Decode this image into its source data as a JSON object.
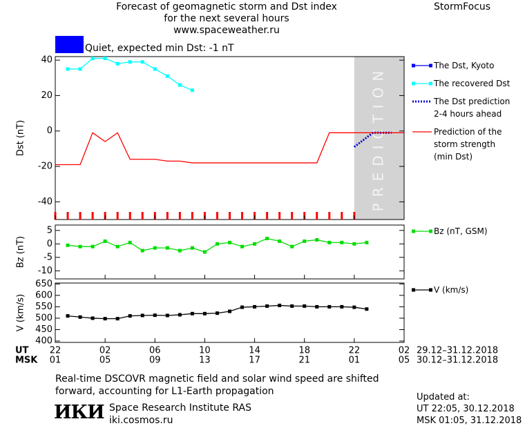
{
  "header": {
    "title": "Forecast of geomagnetic storm and Dst index\nfor the next several hours\nwww.spaceweather.ru",
    "brand": "StormFocus",
    "status": "Quiet, expected min Dst: -1 nT",
    "status_color": "#0000ff"
  },
  "chart_data": [
    {
      "type": "line",
      "ylabel": "Dst (nT)",
      "xlim": [
        0,
        28
      ],
      "ylim": [
        -50,
        42
      ],
      "yticks": [
        40,
        20,
        0,
        -20,
        -40
      ],
      "prediction_region": {
        "xlim": [
          24,
          28
        ],
        "label": "PREDICTION"
      },
      "xminor": [
        0,
        1,
        2,
        3,
        4,
        5,
        6,
        7,
        8,
        9,
        10,
        11,
        12,
        13,
        14,
        15,
        16,
        17,
        18,
        19,
        20,
        21,
        22,
        23,
        24
      ],
      "xminor_color": "#ff0000",
      "series": [
        {
          "name": "The Dst, Kyoto",
          "color": "#0000ff",
          "marker": true,
          "linestyle": "solid",
          "x": [],
          "values": []
        },
        {
          "name": "The recovered Dst",
          "color": "#00ffff",
          "marker": true,
          "linestyle": "solid",
          "x": [
            1,
            2,
            3,
            4,
            5,
            6,
            7,
            8,
            9,
            10,
            11
          ],
          "values": [
            35,
            35,
            41,
            41,
            38,
            39,
            39,
            35,
            31,
            26,
            23
          ]
        },
        {
          "name": "The Dst prediction\n2-4 hours ahead",
          "color": "#0000cc",
          "marker": false,
          "linestyle": "dotted",
          "x": [
            24,
            25.5,
            27
          ],
          "values": [
            -9,
            -1,
            -1
          ]
        },
        {
          "name": "Prediction of the\nstorm strength\n(min Dst)",
          "color": "#ff0000",
          "marker": false,
          "linestyle": "solid",
          "x": [
            0,
            2,
            3,
            4,
            5,
            6,
            8,
            9,
            10,
            11,
            21,
            22,
            28
          ],
          "values": [
            -19,
            -19,
            -1,
            -6,
            -1,
            -16,
            -16,
            -17,
            -17,
            -18,
            -18,
            -1,
            -1
          ]
        }
      ]
    },
    {
      "type": "line",
      "ylabel": "Bz (nT)",
      "xlim": [
        0,
        28
      ],
      "ylim": [
        -13,
        7
      ],
      "yticks": [
        5,
        0,
        -5,
        -10
      ],
      "series": [
        {
          "name": "Bz (nT, GSM)",
          "color": "#00dd00",
          "marker": true,
          "linestyle": "solid",
          "x": [
            1,
            2,
            3,
            4,
            5,
            6,
            7,
            8,
            9,
            10,
            11,
            12,
            13,
            14,
            15,
            16,
            17,
            18,
            19,
            20,
            21,
            22,
            23,
            24,
            25
          ],
          "values": [
            -0.5,
            -1,
            -1,
            1,
            -1,
            0.5,
            -2.5,
            -1.5,
            -1.5,
            -2.5,
            -1.5,
            -3,
            0,
            0.5,
            -1,
            0,
            2,
            1,
            -1,
            1,
            1.5,
            0.5,
            0.5,
            0,
            0.5
          ]
        }
      ]
    },
    {
      "type": "line",
      "ylabel": "V (km/s)",
      "xlim": [
        0,
        28
      ],
      "ylim": [
        394,
        654
      ],
      "yticks": [
        650,
        600,
        550,
        500,
        450,
        400
      ],
      "xrow_labels": [
        "UT",
        "MSK"
      ],
      "xticks": [
        {
          "value": 0,
          "label": "22"
        },
        {
          "value": 4,
          "label": "02"
        },
        {
          "value": 8,
          "label": "06"
        },
        {
          "value": 12,
          "label": "10"
        },
        {
          "value": 16,
          "label": "14"
        },
        {
          "value": 20,
          "label": "18"
        },
        {
          "value": 24,
          "label": "22"
        },
        {
          "value": 28,
          "label": "02"
        }
      ],
      "xticks2": [
        {
          "value": 0,
          "label": "01"
        },
        {
          "value": 4,
          "label": "05"
        },
        {
          "value": 8,
          "label": "09"
        },
        {
          "value": 12,
          "label": "13"
        },
        {
          "value": 16,
          "label": "17"
        },
        {
          "value": 20,
          "label": "21"
        },
        {
          "value": 24,
          "label": "01"
        },
        {
          "value": 28,
          "label": "05"
        }
      ],
      "date_ranges": [
        "29.12–31.12.2018",
        "30.12–31.12.2018"
      ],
      "series": [
        {
          "name": "V (km/s)",
          "color": "#000000",
          "marker": true,
          "linestyle": "solid",
          "x": [
            1,
            2,
            3,
            4,
            5,
            6,
            7,
            8,
            9,
            10,
            11,
            12,
            13,
            14,
            15,
            16,
            17,
            18,
            19,
            20,
            21,
            22,
            23,
            24,
            25
          ],
          "values": [
            510,
            505,
            500,
            498,
            498,
            510,
            512,
            513,
            512,
            515,
            520,
            520,
            522,
            530,
            548,
            550,
            553,
            556,
            553,
            553,
            550,
            550,
            550,
            548,
            540
          ]
        }
      ]
    }
  ],
  "footer": {
    "note": "Real-time DSCOVR magnetic field and solar wind speed are shifted\nforward, accounting for L1-Earth propagation",
    "logo": "ИКИ",
    "institute": "Space Research Institute RAS",
    "site": "iki.cosmos.ru",
    "updated_title": "Updated at:",
    "updated_ut": "UT   22:05, 30.12.2018",
    "updated_msk": "MSK 01:05, 31.12.2018"
  }
}
